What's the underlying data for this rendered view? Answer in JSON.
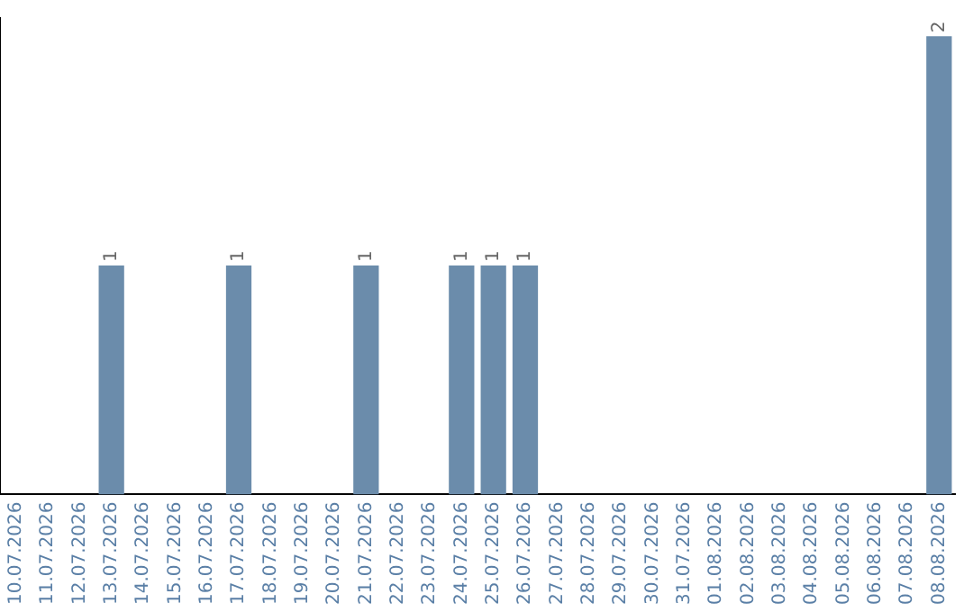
{
  "chart_data": {
    "type": "bar",
    "categories": [
      "10.07.2026",
      "11.07.2026",
      "12.07.2026",
      "13.07.2026",
      "14.07.2026",
      "15.07.2026",
      "16.07.2026",
      "17.07.2026",
      "18.07.2026",
      "19.07.2026",
      "20.07.2026",
      "21.07.2026",
      "22.07.2026",
      "23.07.2026",
      "24.07.2026",
      "25.07.2026",
      "26.07.2026",
      "27.07.2026",
      "28.07.2026",
      "29.07.2026",
      "30.07.2026",
      "31.07.2026",
      "01.08.2026",
      "02.08.2026",
      "03.08.2026",
      "04.08.2026",
      "05.08.2026",
      "06.08.2026",
      "07.08.2026",
      "08.08.2026"
    ],
    "values": [
      0,
      0,
      0,
      1,
      0,
      0,
      0,
      1,
      0,
      0,
      0,
      1,
      0,
      0,
      1,
      1,
      1,
      0,
      0,
      0,
      0,
      0,
      0,
      0,
      0,
      0,
      0,
      0,
      0,
      2
    ],
    "value_labels": [
      null,
      null,
      null,
      "1",
      null,
      null,
      null,
      "1",
      null,
      null,
      null,
      "1",
      null,
      null,
      "1",
      "1",
      "1",
      null,
      null,
      null,
      null,
      null,
      null,
      null,
      null,
      null,
      null,
      null,
      null,
      "2"
    ],
    "color": "#6b8cab",
    "tick_labels": "x",
    "grid": false,
    "legend": false
  }
}
